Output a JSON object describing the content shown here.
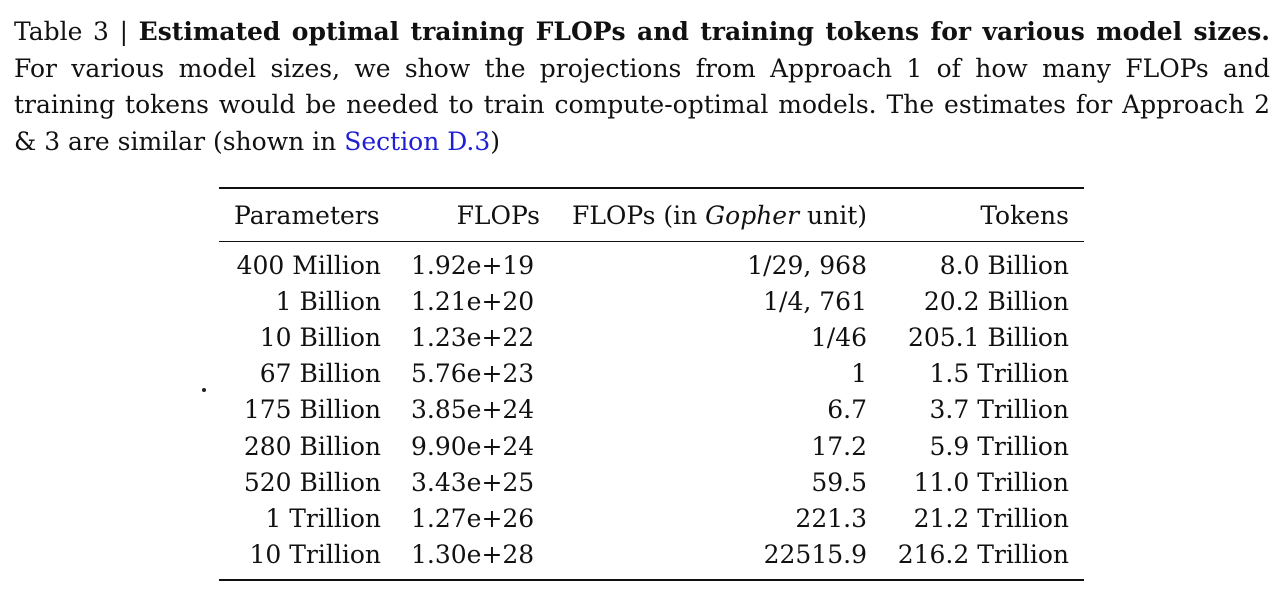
{
  "caption": {
    "label": "Table 3 |",
    "title": "Estimated optimal training FLOPs and training tokens for various model sizes.",
    "body_part1": "For various model sizes, we show the projections from Approach 1 of how many FLOPs and training tokens would be needed to train compute-optimal models. The estimates for Approach 2 & 3 are similar (shown in",
    "link_text": "Section D.3",
    "body_part2": ")"
  },
  "table": {
    "headers": {
      "parameters": "Parameters",
      "flops": "FLOPs",
      "flops_gopher_prefix": "FLOPs (in",
      "flops_gopher_italic": "Gopher",
      "flops_gopher_suffix": "unit)",
      "tokens": "Tokens"
    },
    "rows": [
      {
        "parameters": "400 Million",
        "flops": "1.92e+19",
        "flops_gopher": "1/29, 968",
        "tokens": "8.0 Billion"
      },
      {
        "parameters": "1 Billion",
        "flops": "1.21e+20",
        "flops_gopher": "1/4, 761",
        "tokens": "20.2 Billion"
      },
      {
        "parameters": "10 Billion",
        "flops": "1.23e+22",
        "flops_gopher": "1/46",
        "tokens": "205.1 Billion"
      },
      {
        "parameters": "67 Billion",
        "flops": "5.76e+23",
        "flops_gopher": "1",
        "tokens": "1.5 Trillion"
      },
      {
        "parameters": "175 Billion",
        "flops": "3.85e+24",
        "flops_gopher": "6.7",
        "tokens": "3.7 Trillion"
      },
      {
        "parameters": "280 Billion",
        "flops": "9.90e+24",
        "flops_gopher": "17.2",
        "tokens": "5.9 Trillion"
      },
      {
        "parameters": "520 Billion",
        "flops": "3.43e+25",
        "flops_gopher": "59.5",
        "tokens": "11.0 Trillion"
      },
      {
        "parameters": "1 Trillion",
        "flops": "1.27e+26",
        "flops_gopher": "221.3",
        "tokens": "21.2 Trillion"
      },
      {
        "parameters": "10 Trillion",
        "flops": "1.30e+28",
        "flops_gopher": "22515.9",
        "tokens": "216.2 Trillion"
      }
    ]
  },
  "colors": {
    "text": "#111111",
    "link": "#1f1fd6",
    "background": "#ffffff"
  }
}
